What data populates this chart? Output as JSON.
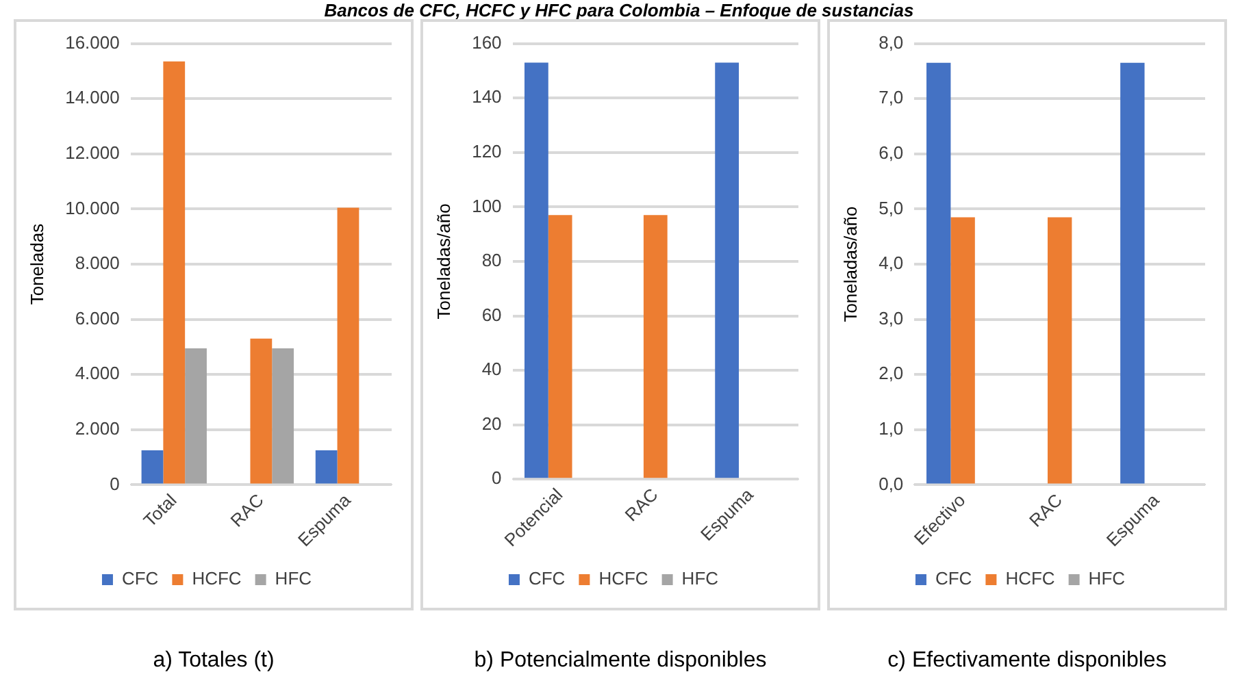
{
  "chart_data": [
    {
      "type": "bar",
      "title": "Bancos de CFC, HCFC y HFC para Colombia – Enfoque de sustancias",
      "ylabel": "Toneladas",
      "categories": [
        "Total",
        "RAC",
        "Espuma"
      ],
      "series": [
        {
          "name": "CFC",
          "color": "#4472c4",
          "values": [
            1250,
            null,
            1250
          ]
        },
        {
          "name": "HCFC",
          "color": "#ed7d31",
          "values": [
            15350,
            5300,
            10050
          ]
        },
        {
          "name": "HFC",
          "color": "#a5a5a5",
          "values": [
            4950,
            4950,
            null
          ]
        }
      ],
      "ylim": [
        0,
        16000
      ],
      "yticks": [
        0,
        {
          "value": 2000,
          "label": "2.000"
        },
        {
          "value": 4000,
          "label": "4.000"
        },
        {
          "value": 6000,
          "label": "6.000"
        },
        {
          "value": 8000,
          "label": "8.000"
        },
        {
          "value": 10000,
          "label": "10.000"
        },
        {
          "value": 12000,
          "label": "12.000"
        },
        {
          "value": 14000,
          "label": "14.000"
        },
        {
          "value": 16000,
          "label": "16.000"
        }
      ],
      "grid": "y",
      "legend": "bottom",
      "annotations": [
        "a) Totales (t)"
      ]
    },
    {
      "type": "bar",
      "ylabel": "Toneladas/año",
      "categories": [
        "Potencial",
        "RAC",
        "Espuma"
      ],
      "series": [
        {
          "name": "CFC",
          "color": "#4472c4",
          "values": [
            153,
            null,
            153
          ]
        },
        {
          "name": "HCFC",
          "color": "#ed7d31",
          "values": [
            97,
            97,
            null
          ]
        },
        {
          "name": "HFC",
          "color": "#a5a5a5",
          "values": [
            null,
            null,
            null
          ]
        }
      ],
      "ylim": [
        0,
        160
      ],
      "yticks": [
        0,
        20,
        40,
        60,
        80,
        100,
        120,
        140,
        160
      ],
      "grid": "y",
      "legend": "bottom",
      "annotations": [
        "b) Potencialmente disponibles"
      ]
    },
    {
      "type": "bar",
      "ylabel": "Toneladas/año",
      "categories": [
        "Efectivo",
        "RAC",
        "Espuma"
      ],
      "series": [
        {
          "name": "CFC",
          "color": "#4472c4",
          "values": [
            7.65,
            null,
            7.65
          ]
        },
        {
          "name": "HCFC",
          "color": "#ed7d31",
          "values": [
            4.85,
            4.85,
            null
          ]
        },
        {
          "name": "HFC",
          "color": "#a5a5a5",
          "values": [
            null,
            null,
            null
          ]
        }
      ],
      "ylim": [
        0,
        8
      ],
      "yticks": [
        {
          "value": 0,
          "label": "0,0"
        },
        {
          "value": 1,
          "label": "1,0"
        },
        {
          "value": 2,
          "label": "2,0"
        },
        {
          "value": 3,
          "label": "3,0"
        },
        {
          "value": 4,
          "label": "4,0"
        },
        {
          "value": 5,
          "label": "5,0"
        },
        {
          "value": 6,
          "label": "6,0"
        },
        {
          "value": 7,
          "label": "7,0"
        },
        {
          "value": 8,
          "label": "8,0"
        }
      ],
      "grid": "y",
      "legend": "bottom",
      "annotations": [
        "c) Efectivamente disponibles"
      ]
    }
  ]
}
